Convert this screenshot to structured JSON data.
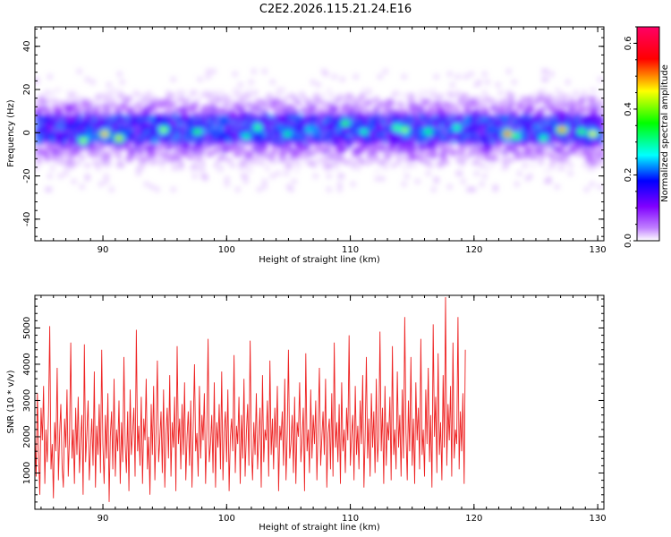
{
  "title": "C2E2.2026.115.21.24.E16",
  "chart_data": [
    {
      "type": "heatmap",
      "xlabel": "Height of straight line (km)",
      "ylabel": "Frequency (Hz)",
      "xlim": [
        84.5,
        130.5
      ],
      "ylim": [
        -50,
        49
      ],
      "xticks": [
        "90",
        "100",
        "110",
        "120",
        "130"
      ],
      "yticks": [
        "-40",
        "-20",
        "0",
        "20",
        "40"
      ],
      "colorbar": {
        "label": "Normalized spectral amplitude",
        "range": [
          0.0,
          0.65
        ],
        "ticks": [
          "0.0",
          "0.2",
          "0.4",
          "0.6"
        ],
        "colors": [
          "#ffffff",
          "#c080ff",
          "#8000ff",
          "#0000ff",
          "#00ffff",
          "#00ff00",
          "#ffff00",
          "#ff0000",
          "#ff0066"
        ]
      },
      "band": {
        "center_hz": 2,
        "core_halfwidth_hz": 6,
        "outer_halfwidth_hz": 20,
        "typical_amplitude": 0.15
      },
      "peaks": [
        {
          "x": 88.3,
          "y": -3,
          "value": 0.45
        },
        {
          "x": 90.0,
          "y": 0,
          "value": 0.55
        },
        {
          "x": 91.2,
          "y": -2,
          "value": 0.5
        },
        {
          "x": 94.8,
          "y": 2,
          "value": 0.45
        },
        {
          "x": 97.5,
          "y": 1,
          "value": 0.4
        },
        {
          "x": 101.5,
          "y": -1,
          "value": 0.35
        },
        {
          "x": 102.4,
          "y": 3,
          "value": 0.4
        },
        {
          "x": 104.8,
          "y": 0,
          "value": 0.35
        },
        {
          "x": 106.5,
          "y": 2,
          "value": 0.3
        },
        {
          "x": 109.5,
          "y": 5,
          "value": 0.42
        },
        {
          "x": 111.0,
          "y": 1,
          "value": 0.35
        },
        {
          "x": 113.6,
          "y": 3,
          "value": 0.4
        },
        {
          "x": 114.3,
          "y": 2,
          "value": 0.45
        },
        {
          "x": 116.2,
          "y": 1,
          "value": 0.38
        },
        {
          "x": 118.5,
          "y": 3,
          "value": 0.38
        },
        {
          "x": 122.6,
          "y": 0,
          "value": 0.62
        },
        {
          "x": 123.3,
          "y": -1,
          "value": 0.4
        },
        {
          "x": 125.5,
          "y": -2,
          "value": 0.38
        },
        {
          "x": 127.0,
          "y": 2,
          "value": 0.6
        },
        {
          "x": 128.6,
          "y": 1,
          "value": 0.42
        },
        {
          "x": 129.5,
          "y": 0,
          "value": 0.5
        }
      ]
    },
    {
      "type": "line",
      "xlabel": "Height of straight line (km)",
      "ylabel": "SNR (10 * v/v)",
      "xlim": [
        84.5,
        130.5
      ],
      "ylim": [
        0,
        5900
      ],
      "xticks": [
        "90",
        "100",
        "110",
        "120",
        "130"
      ],
      "yticks": [
        "1000",
        "2000",
        "3000",
        "4000",
        "5000"
      ],
      "series": [
        {
          "color": "#ee2222",
          "x_start": 84.5,
          "x_step": 0.1,
          "values": [
            2100,
            900,
            3200,
            1500,
            400,
            2800,
            1900,
            3400,
            700,
            2200,
            1300,
            2600,
            5050,
            1100,
            1800,
            300,
            2400,
            1600,
            3900,
            800,
            2100,
            2900,
            1200,
            600,
            2500,
            1700,
            3300,
            900,
            2000,
            4600,
            1400,
            2200,
            700,
            2800,
            1500,
            3100,
            1000,
            1900,
            2600,
            400,
            4550,
            1300,
            2100,
            3000,
            800,
            1700,
            2500,
            1200,
            3800,
            600,
            2300,
            1500,
            2900,
            1000,
            4400,
            1800,
            700,
            2600,
            1400,
            3200,
            200,
            2000,
            2700,
            1100,
            3600,
            900,
            2200,
            1600,
            3000,
            700,
            2400,
            1300,
            4200,
            1800,
            1000,
            2700,
            500,
            3300,
            1500,
            2100,
            2800,
            900,
            4950,
            1600,
            2300,
            1200,
            3100,
            700,
            2500,
            1900,
            3600,
            1100,
            2000,
            400,
            2900,
            1500,
            3400,
            800,
            2200,
            4100,
            1300,
            1900,
            2700,
            1000,
            3300,
            600,
            2100,
            2800,
            1400,
            3700,
            900,
            2400,
            1700,
            3100,
            500,
            4500,
            1800,
            2500,
            1100,
            2900,
            1500,
            3500,
            800,
            2000,
            2700,
            1200,
            3000,
            600,
            2300,
            4000,
            1600,
            2100,
            900,
            3400,
            1400,
            2600,
            1900,
            3200,
            700,
            2200,
            4700,
            1300,
            1800,
            2600,
            1000,
            3500,
            600,
            2400,
            1700,
            2900,
            1100,
            3800,
            800,
            2100,
            2700,
            1300,
            3300,
            500,
            2000,
            2500,
            1600,
            4250,
            1000,
            2300,
            1800,
            3100,
            700,
            2600,
            1400,
            3600,
            900,
            2100,
            2900,
            1200,
            4650,
            1700,
            800,
            2400,
            1500,
            3200,
            1100,
            2000,
            2800,
            600,
            3700,
            1300,
            2200,
            1900,
            3000,
            900,
            4100,
            1500,
            2500,
            1100,
            2800,
            1700,
            3400,
            500,
            2300,
            1900,
            2700,
            1200,
            3600,
            800,
            2100,
            4400,
            1400,
            1800,
            2600,
            1000,
            3100,
            700,
            2400,
            2000,
            3500,
            1300,
            1900,
            2800,
            500,
            4300,
            1600,
            2200,
            1000,
            3300,
            1400,
            2600,
            1800,
            3000,
            800,
            2300,
            3900,
            1200,
            2000,
            2700,
            1500,
            3600,
            600,
            2100,
            2500,
            1100,
            3200,
            900,
            4600,
            1700,
            2400,
            1300,
            2900,
            700,
            3500,
            1600,
            2200,
            1000,
            2800,
            1900,
            4800,
            1200,
            2000,
            2600,
            800,
            3400,
            1500,
            2300,
            1100,
            3000,
            1800,
            3700,
            600,
            2100,
            4200,
            1400,
            2500,
            900,
            3200,
            1700,
            2700,
            1000,
            3600,
            1300,
            2000,
            4900,
            1600,
            2800,
            700,
            3400,
            1200,
            2400,
            1900,
            3100,
            800,
            4500,
            1500,
            2200,
            1100,
            3800,
            1700,
            2600,
            900,
            3300,
            1400,
            5300,
            2100,
            800,
            3000,
            1600,
            4200,
            1200,
            2500,
            700,
            3500,
            1900,
            2800,
            1100,
            4700,
            1500,
            2200,
            900,
            3300,
            1800,
            3900,
            1300,
            2600,
            600,
            5100,
            2000,
            3100,
            1000,
            4300,
            1500,
            2400,
            800,
            3700,
            1700,
            5850,
            1200,
            2900,
            1900,
            3400,
            900,
            4600,
            1400,
            2200,
            1800,
            5300,
            1100,
            2700,
            1600,
            3200,
            700,
            4400
          ]
        }
      ]
    }
  ]
}
